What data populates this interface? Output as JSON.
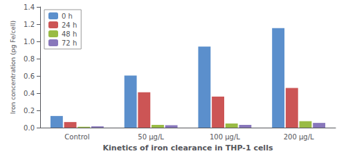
{
  "chart_data": {
    "type": "bar",
    "categories": [
      "Control",
      "50 μg/L",
      "100 μg/L",
      "200 μg/L"
    ],
    "series": [
      {
        "name": "0 h",
        "color": "#5B8FCC",
        "values": [
          0.135,
          0.605,
          0.94,
          1.155
        ]
      },
      {
        "name": "24 h",
        "color": "#CC5555",
        "values": [
          0.065,
          0.41,
          0.36,
          0.46
        ]
      },
      {
        "name": "48 h",
        "color": "#99BB44",
        "values": [
          0.01,
          0.032,
          0.048,
          0.075
        ]
      },
      {
        "name": "72 h",
        "color": "#8877BB",
        "values": [
          0.015,
          0.028,
          0.032,
          0.055
        ]
      }
    ],
    "xlabel": "Kinetics of iron clearance in THP-1 cells",
    "ylabel": "Iron concentration (pg Fe/cell)",
    "ylim": [
      0,
      1.4
    ],
    "yticks": [
      {
        "value": 0,
        "label": "0.0"
      },
      0.2,
      0.4,
      0.6,
      0.8,
      {
        "value": 1,
        "label": "1.0"
      },
      1.2,
      1.4
    ],
    "grid": false,
    "legend": "upper left"
  }
}
